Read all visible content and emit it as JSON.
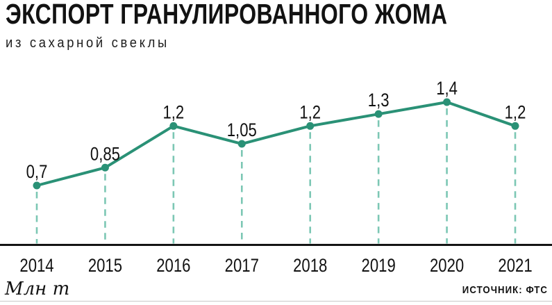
{
  "header": {
    "title": "ЭКСПОРТ ГРАНУЛИРОВАННОГО ЖОМА",
    "subtitle": "из сахарной свеклы"
  },
  "chart_data": {
    "type": "line",
    "title": "ЭКСПОРТ ГРАНУЛИРОВАННОГО ЖОМА",
    "subtitle": "из сахарной свеклы",
    "categories": [
      "2014",
      "2015",
      "2016",
      "2017",
      "2018",
      "2019",
      "2020",
      "2021"
    ],
    "values": [
      0.7,
      0.85,
      1.2,
      1.05,
      1.2,
      1.3,
      1.4,
      1.2
    ],
    "point_labels": [
      "0,7",
      "0,85",
      "1,2",
      "1,05",
      "1,2",
      "1,3",
      "1,4",
      "1,2"
    ],
    "xlabel": "",
    "ylabel": "Млн т",
    "ylim": [
      0,
      1.5
    ],
    "y_axis_visible": false,
    "grid": "vertical-dashed-stems",
    "legend": "none",
    "source": "ИСТОЧНИК: ФТС",
    "colors": {
      "line": "#2a9176",
      "stem": "#7cc7b4",
      "axis": "#141414",
      "text": "#121212"
    }
  },
  "footer": {
    "unit_label": "Млн т",
    "source_label": "ИСТОЧНИК: ФТС"
  }
}
